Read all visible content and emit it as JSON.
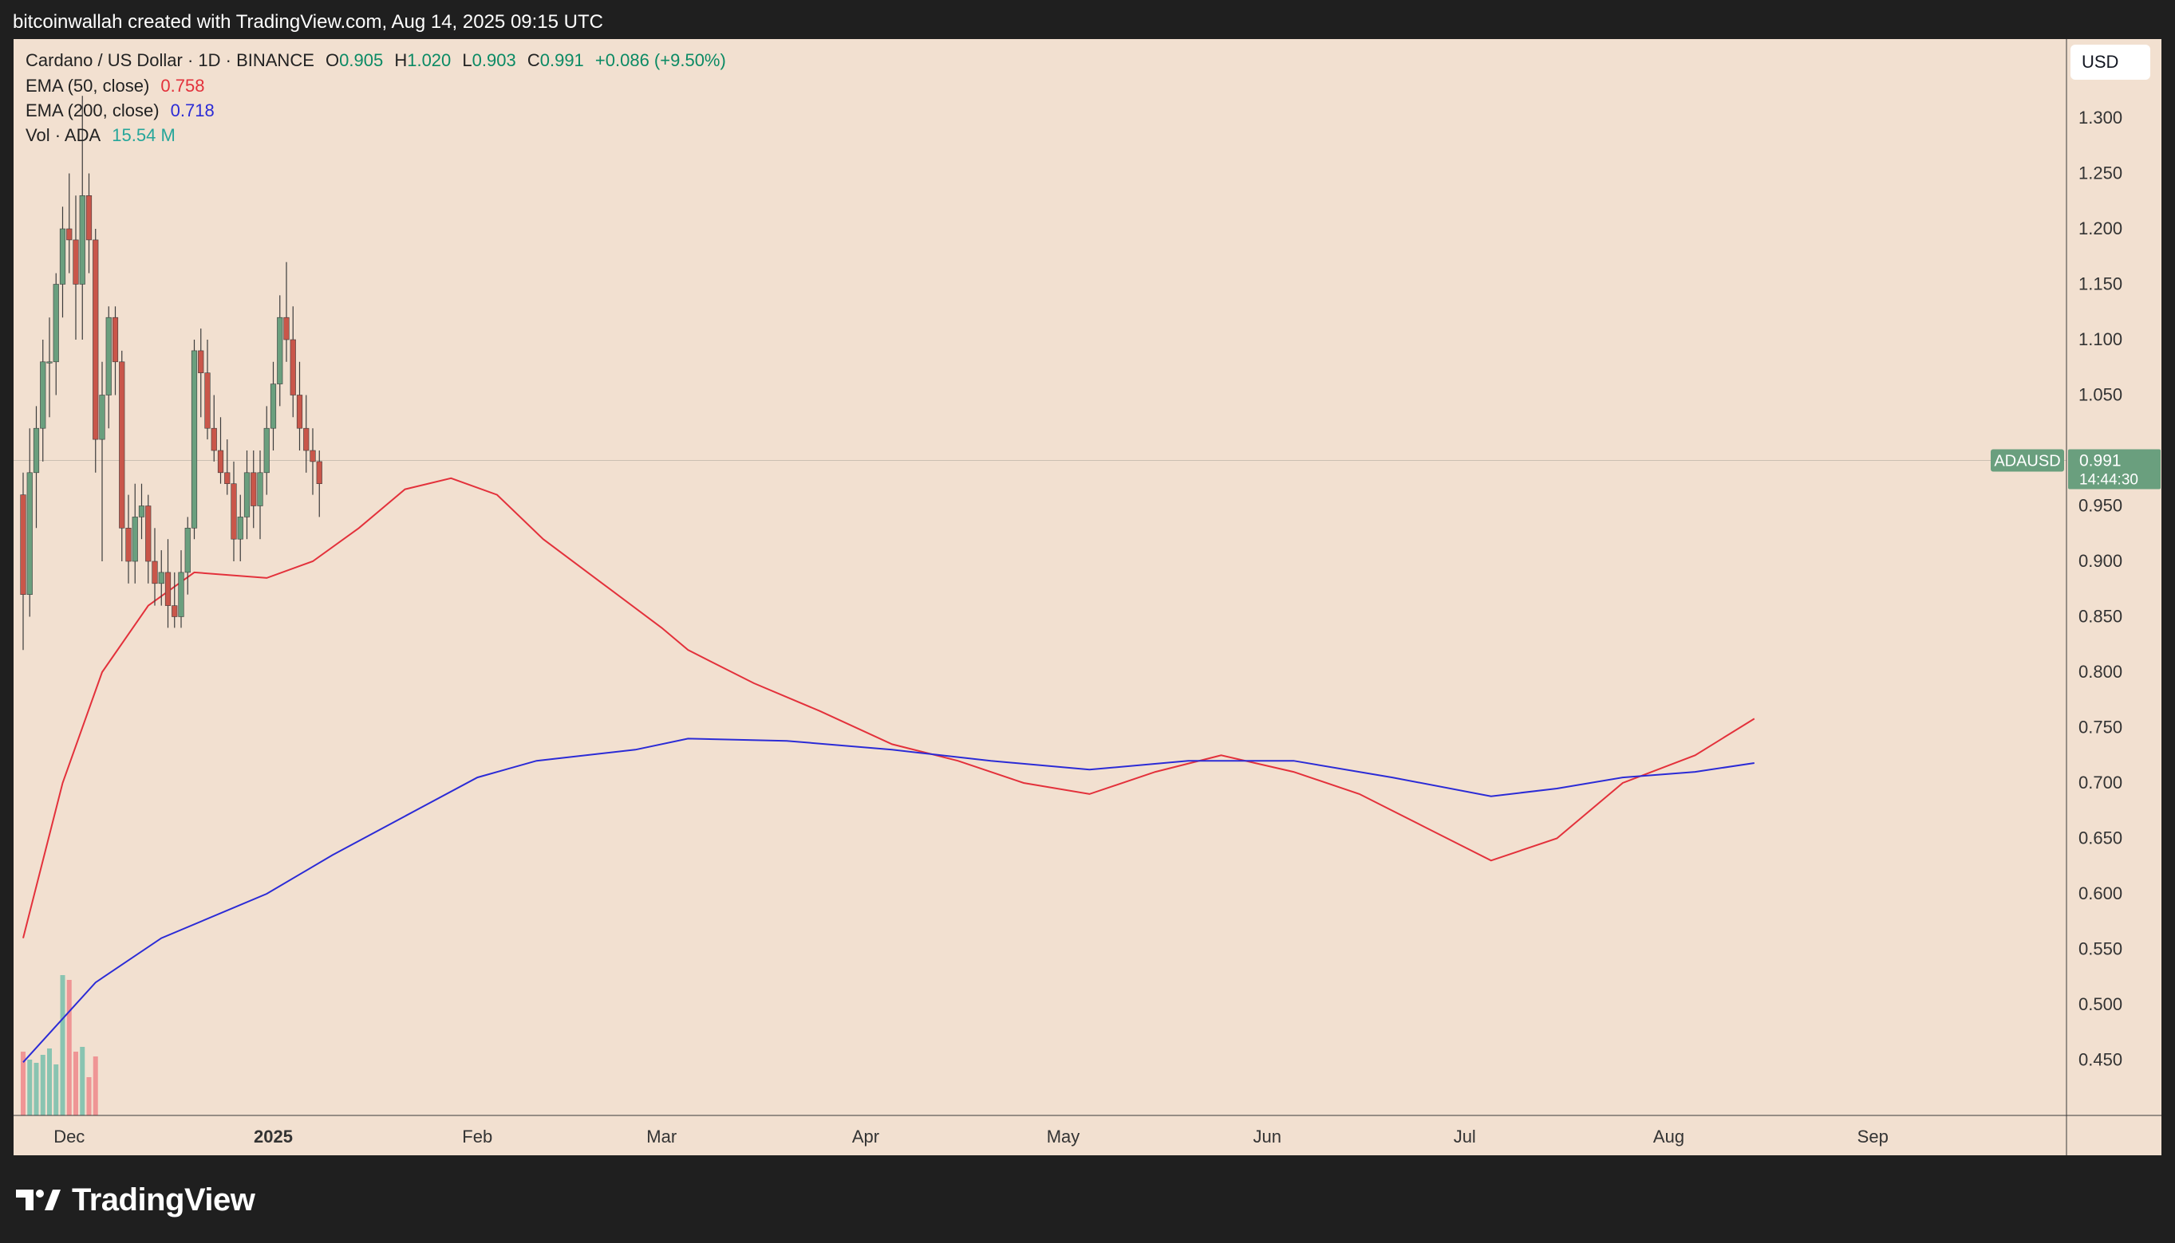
{
  "header": {
    "attribution": "bitcoinwallah created with TradingView.com, Aug 14, 2025 09:15 UTC"
  },
  "legend": {
    "symbol": "Cardano / US Dollar · 1D · BINANCE",
    "open_label": "O",
    "open": "0.905",
    "high_label": "H",
    "high": "1.020",
    "low_label": "L",
    "low": "0.903",
    "close_label": "C",
    "close": "0.991",
    "change": "+0.086 (+9.50%)",
    "ema50_label": "EMA (50, close)",
    "ema50_value": "0.758",
    "ema200_label": "EMA (200, close)",
    "ema200_value": "0.718",
    "vol_label": "Vol · ADA",
    "vol_value": "15.54 M"
  },
  "currency_button": "USD",
  "price_tag": {
    "symbol": "ADAUSD",
    "price": "0.991",
    "countdown": "14:44:30"
  },
  "colors": {
    "up": "#6a9f7e",
    "down": "#c9564a",
    "ema50": "#e3313b",
    "ema200": "#2b2bd6",
    "up_volume": "#89c4b1",
    "down_volume": "#ef9595",
    "background": "#f2e0d0",
    "frame": "#1f1f1f"
  },
  "footer": {
    "brand": "TradingView",
    "logo": "tradingview-logo-icon"
  },
  "chart_data": {
    "type": "candlestick",
    "title": "Cardano / US Dollar · 1D · BINANCE",
    "ylim": [
      0.4,
      1.35
    ],
    "y_ticks": [
      0.45,
      0.5,
      0.55,
      0.6,
      0.65,
      0.7,
      0.75,
      0.8,
      0.85,
      0.9,
      0.95,
      1.0,
      1.05,
      1.1,
      1.15,
      1.2,
      1.25,
      1.3
    ],
    "x_ticks": [
      {
        "label": "Dec",
        "date": "2024-12-01"
      },
      {
        "label": "2025",
        "date": "2025-01-01"
      },
      {
        "label": "Feb",
        "date": "2025-02-01"
      },
      {
        "label": "Mar",
        "date": "2025-03-01"
      },
      {
        "label": "Apr",
        "date": "2025-04-01"
      },
      {
        "label": "May",
        "date": "2025-05-01"
      },
      {
        "label": "Jun",
        "date": "2025-06-01"
      },
      {
        "label": "Jul",
        "date": "2025-07-01"
      },
      {
        "label": "Aug",
        "date": "2025-08-01"
      },
      {
        "label": "Sep",
        "date": "2025-09-01"
      }
    ],
    "last_price": 0.991,
    "series": [
      {
        "name": "EMA (50, close)",
        "points": [
          [
            "2024-11-24",
            0.56
          ],
          [
            "2024-11-30",
            0.7
          ],
          [
            "2024-12-06",
            0.8
          ],
          [
            "2024-12-13",
            0.86
          ],
          [
            "2024-12-20",
            0.89
          ],
          [
            "2024-12-31",
            0.885
          ],
          [
            "2025-01-07",
            0.9
          ],
          [
            "2025-01-14",
            0.93
          ],
          [
            "2025-01-21",
            0.965
          ],
          [
            "2025-01-28",
            0.975
          ],
          [
            "2025-02-04",
            0.96
          ],
          [
            "2025-02-11",
            0.92
          ],
          [
            "2025-02-20",
            0.88
          ],
          [
            "2025-03-01",
            0.84
          ],
          [
            "2025-03-05",
            0.82
          ],
          [
            "2025-03-15",
            0.79
          ],
          [
            "2025-03-25",
            0.765
          ],
          [
            "2025-04-05",
            0.735
          ],
          [
            "2025-04-15",
            0.72
          ],
          [
            "2025-04-25",
            0.7
          ],
          [
            "2025-05-05",
            0.69
          ],
          [
            "2025-05-15",
            0.71
          ],
          [
            "2025-05-25",
            0.725
          ],
          [
            "2025-06-05",
            0.71
          ],
          [
            "2025-06-15",
            0.69
          ],
          [
            "2025-06-25",
            0.66
          ],
          [
            "2025-07-05",
            0.63
          ],
          [
            "2025-07-15",
            0.65
          ],
          [
            "2025-07-25",
            0.7
          ],
          [
            "2025-08-05",
            0.725
          ],
          [
            "2025-08-14",
            0.758
          ]
        ]
      },
      {
        "name": "EMA (200, close)",
        "points": [
          [
            "2024-11-24",
            0.448
          ],
          [
            "2024-12-05",
            0.52
          ],
          [
            "2024-12-15",
            0.56
          ],
          [
            "2024-12-31",
            0.6
          ],
          [
            "2025-01-10",
            0.635
          ],
          [
            "2025-01-21",
            0.67
          ],
          [
            "2025-02-01",
            0.705
          ],
          [
            "2025-02-10",
            0.72
          ],
          [
            "2025-02-25",
            0.73
          ],
          [
            "2025-03-05",
            0.74
          ],
          [
            "2025-03-20",
            0.738
          ],
          [
            "2025-04-05",
            0.73
          ],
          [
            "2025-04-20",
            0.72
          ],
          [
            "2025-05-05",
            0.712
          ],
          [
            "2025-05-20",
            0.72
          ],
          [
            "2025-06-05",
            0.72
          ],
          [
            "2025-06-20",
            0.705
          ],
          [
            "2025-07-05",
            0.688
          ],
          [
            "2025-07-15",
            0.695
          ],
          [
            "2025-07-25",
            0.705
          ],
          [
            "2025-08-05",
            0.71
          ],
          [
            "2025-08-14",
            0.718
          ]
        ]
      }
    ],
    "candles": [
      {
        "date": "2024-11-24",
        "o": 0.96,
        "h": 0.98,
        "l": 0.82,
        "c": 0.87
      },
      {
        "date": "2024-11-25",
        "o": 0.87,
        "h": 1.02,
        "l": 0.85,
        "c": 0.98
      },
      {
        "date": "2024-11-26",
        "o": 0.98,
        "h": 1.04,
        "l": 0.93,
        "c": 1.02
      },
      {
        "date": "2024-11-27",
        "o": 1.02,
        "h": 1.1,
        "l": 0.99,
        "c": 1.08
      },
      {
        "date": "2024-11-28",
        "o": 1.08,
        "h": 1.12,
        "l": 1.03,
        "c": 1.08
      },
      {
        "date": "2024-11-29",
        "o": 1.08,
        "h": 1.16,
        "l": 1.05,
        "c": 1.15
      },
      {
        "date": "2024-11-30",
        "o": 1.15,
        "h": 1.22,
        "l": 1.12,
        "c": 1.2
      },
      {
        "date": "2024-12-01",
        "o": 1.2,
        "h": 1.25,
        "l": 1.16,
        "c": 1.19
      },
      {
        "date": "2024-12-02",
        "o": 1.19,
        "h": 1.23,
        "l": 1.1,
        "c": 1.15
      },
      {
        "date": "2024-12-03",
        "o": 1.15,
        "h": 1.32,
        "l": 1.1,
        "c": 1.23
      },
      {
        "date": "2024-12-04",
        "o": 1.23,
        "h": 1.25,
        "l": 1.16,
        "c": 1.19
      },
      {
        "date": "2024-12-05",
        "o": 1.19,
        "h": 1.2,
        "l": 0.98,
        "c": 1.01
      },
      {
        "date": "2024-12-06",
        "o": 1.01,
        "h": 1.08,
        "l": 0.9,
        "c": 1.05
      },
      {
        "date": "2024-12-07",
        "o": 1.05,
        "h": 1.13,
        "l": 1.02,
        "c": 1.12
      },
      {
        "date": "2024-12-08",
        "o": 1.12,
        "h": 1.13,
        "l": 1.05,
        "c": 1.08
      },
      {
        "date": "2024-12-09",
        "o": 1.08,
        "h": 1.09,
        "l": 0.9,
        "c": 0.93
      },
      {
        "date": "2024-12-10",
        "o": 0.93,
        "h": 0.96,
        "l": 0.88,
        "c": 0.9
      },
      {
        "date": "2024-12-11",
        "o": 0.9,
        "h": 0.97,
        "l": 0.88,
        "c": 0.94
      },
      {
        "date": "2024-12-12",
        "o": 0.94,
        "h": 0.97,
        "l": 0.92,
        "c": 0.95
      },
      {
        "date": "2024-12-13",
        "o": 0.95,
        "h": 0.96,
        "l": 0.88,
        "c": 0.9
      },
      {
        "date": "2024-12-14",
        "o": 0.9,
        "h": 0.93,
        "l": 0.86,
        "c": 0.88
      },
      {
        "date": "2024-12-15",
        "o": 0.88,
        "h": 0.91,
        "l": 0.86,
        "c": 0.89
      },
      {
        "date": "2024-12-16",
        "o": 0.89,
        "h": 0.92,
        "l": 0.84,
        "c": 0.86
      },
      {
        "date": "2024-12-17",
        "o": 0.86,
        "h": 0.89,
        "l": 0.84,
        "c": 0.85
      },
      {
        "date": "2024-12-18",
        "o": 0.85,
        "h": 0.91,
        "l": 0.84,
        "c": 0.89
      },
      {
        "date": "2024-12-19",
        "o": 0.89,
        "h": 0.94,
        "l": 0.87,
        "c": 0.93
      },
      {
        "date": "2024-12-20",
        "o": 0.93,
        "h": 1.1,
        "l": 0.92,
        "c": 1.09
      },
      {
        "date": "2024-12-21",
        "o": 1.09,
        "h": 1.11,
        "l": 1.03,
        "c": 1.07
      },
      {
        "date": "2024-12-22",
        "o": 1.07,
        "h": 1.1,
        "l": 1.01,
        "c": 1.02
      },
      {
        "date": "2024-12-23",
        "o": 1.02,
        "h": 1.05,
        "l": 0.99,
        "c": 1.0
      },
      {
        "date": "2024-12-24",
        "o": 1.0,
        "h": 1.03,
        "l": 0.97,
        "c": 0.98
      },
      {
        "date": "2024-12-25",
        "o": 0.98,
        "h": 1.01,
        "l": 0.96,
        "c": 0.97
      },
      {
        "date": "2024-12-26",
        "o": 0.97,
        "h": 0.99,
        "l": 0.9,
        "c": 0.92
      },
      {
        "date": "2024-12-27",
        "o": 0.92,
        "h": 0.96,
        "l": 0.9,
        "c": 0.94
      },
      {
        "date": "2024-12-28",
        "o": 0.94,
        "h": 1.0,
        "l": 0.92,
        "c": 0.98
      },
      {
        "date": "2024-12-29",
        "o": 0.98,
        "h": 1.0,
        "l": 0.93,
        "c": 0.95
      },
      {
        "date": "2024-12-30",
        "o": 0.95,
        "h": 1.0,
        "l": 0.92,
        "c": 0.98
      },
      {
        "date": "2024-12-31",
        "o": 0.98,
        "h": 1.04,
        "l": 0.96,
        "c": 1.02
      },
      {
        "date": "2025-01-01",
        "o": 1.02,
        "h": 1.08,
        "l": 1.0,
        "c": 1.06
      },
      {
        "date": "2025-01-02",
        "o": 1.06,
        "h": 1.14,
        "l": 1.04,
        "c": 1.12
      },
      {
        "date": "2025-01-03",
        "o": 1.12,
        "h": 1.17,
        "l": 1.08,
        "c": 1.1
      },
      {
        "date": "2025-01-04",
        "o": 1.1,
        "h": 1.13,
        "l": 1.03,
        "c": 1.05
      },
      {
        "date": "2025-01-05",
        "o": 1.05,
        "h": 1.08,
        "l": 1.0,
        "c": 1.02
      },
      {
        "date": "2025-01-06",
        "o": 1.02,
        "h": 1.05,
        "l": 0.98,
        "c": 1.0
      },
      {
        "date": "2025-01-07",
        "o": 1.0,
        "h": 1.02,
        "l": 0.96,
        "c": 0.99
      },
      {
        "date": "2025-01-08",
        "o": 0.99,
        "h": 1.0,
        "l": 0.94,
        "c": 0.97
      }
    ],
    "volume": [
      {
        "date": "2024-11-24",
        "v": 40,
        "up": false
      },
      {
        "date": "2024-11-25",
        "v": 35,
        "up": true
      },
      {
        "date": "2024-11-26",
        "v": 33,
        "up": true
      },
      {
        "date": "2024-11-27",
        "v": 38,
        "up": true
      },
      {
        "date": "2024-11-28",
        "v": 42,
        "up": true
      },
      {
        "date": "2024-11-29",
        "v": 32,
        "up": true
      },
      {
        "date": "2024-11-30",
        "v": 88,
        "up": true
      },
      {
        "date": "2024-12-01",
        "v": 85,
        "up": false
      },
      {
        "date": "2024-12-02",
        "v": 40,
        "up": false
      },
      {
        "date": "2024-12-03",
        "v": 43,
        "up": true
      },
      {
        "date": "2024-12-04",
        "v": 24,
        "up": false
      },
      {
        "date": "2024-12-05",
        "v": 37,
        "up": false
      }
    ]
  }
}
